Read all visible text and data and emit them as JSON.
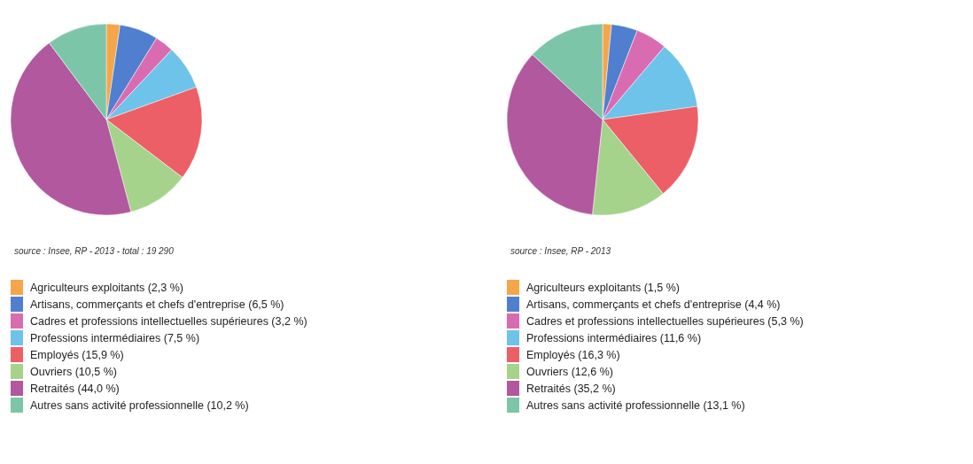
{
  "chart_data": [
    {
      "type": "pie",
      "categories": [
        "Agriculteurs exploitants (2,3 %)",
        "Artisans, commerçants et chefs d'entreprise (6,5 %)",
        "Cadres et professions intellectuelles supérieures (3,2 %)",
        "Professions intermédiaires (7,5 %)",
        "Employés (15,9 %)",
        "Ouvriers (10,5 %)",
        "Retraités (44,0 %)",
        "Autres sans activité professionnelle (10,2 %)"
      ],
      "values": [
        2.3,
        6.5,
        3.2,
        7.5,
        15.9,
        10.5,
        44.0,
        10.2
      ],
      "colors": [
        "#f5a54a",
        "#4f7fce",
        "#d96cb1",
        "#6dc3e9",
        "#ec5f66",
        "#a6d38b",
        "#b1589f",
        "#7dc5a9"
      ],
      "legend": "bottom",
      "annotations": [
        "source : Insee, RP - 2013 - total : 19 290"
      ]
    },
    {
      "type": "pie",
      "categories": [
        "Agriculteurs exploitants (1,5 %)",
        "Artisans, commerçants et chefs d'entreprise (4,4 %)",
        "Cadres et professions intellectuelles supérieures (5,3 %)",
        "Professions intermédiaires (11,6 %)",
        "Employés (16,3 %)",
        "Ouvriers (12,6 %)",
        "Retraités (35,2 %)",
        "Autres sans activité professionnelle (13,1 %)"
      ],
      "values": [
        1.5,
        4.4,
        5.3,
        11.6,
        16.3,
        12.6,
        35.2,
        13.1
      ],
      "colors": [
        "#f5a54a",
        "#4f7fce",
        "#d96cb1",
        "#6dc3e9",
        "#ec5f66",
        "#a6d38b",
        "#b1589f",
        "#7dc5a9"
      ],
      "legend": "bottom",
      "annotations": [
        "source : Insee, RP - 2013"
      ]
    }
  ]
}
